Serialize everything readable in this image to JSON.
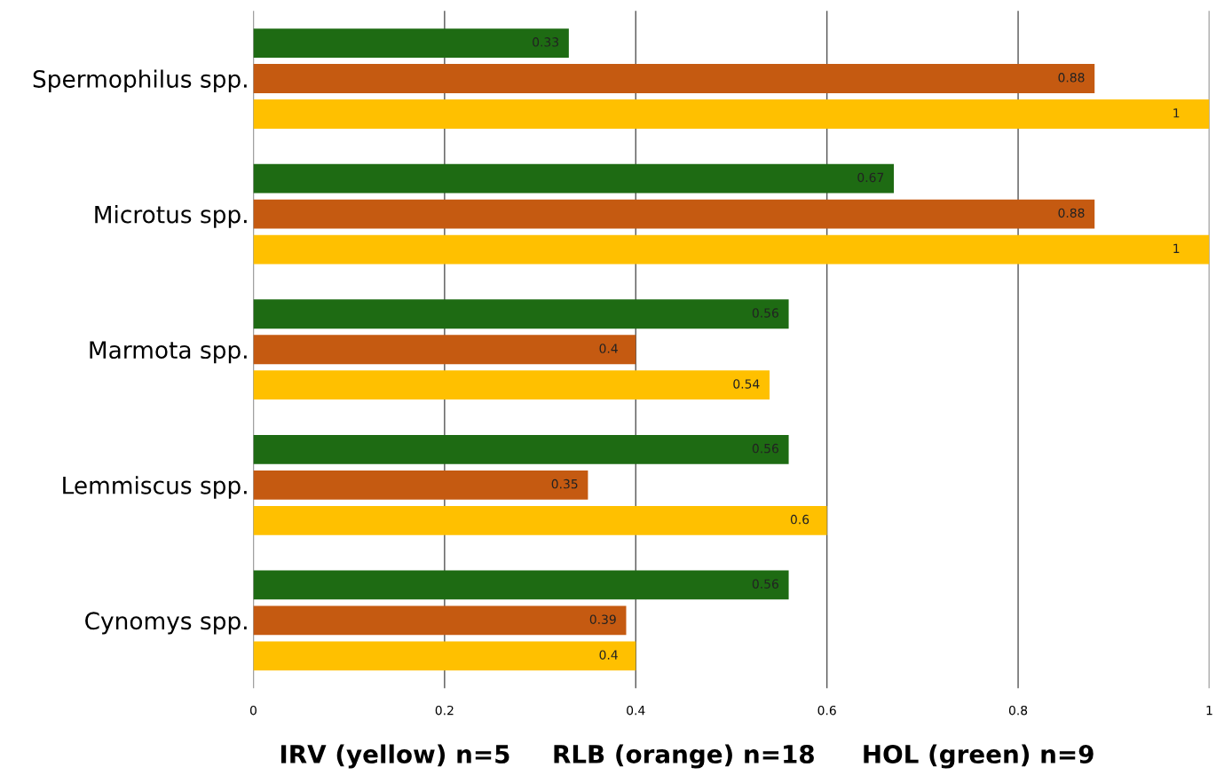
{
  "chart_data": {
    "type": "bar",
    "orientation": "horizontal",
    "categories": [
      "Spermophilus spp.",
      "Microtus spp.",
      "Marmota spp.",
      "Lemmiscus spp.",
      "Cynomys spp."
    ],
    "series": [
      {
        "color": "#1e6b13",
        "values": [
          0.33,
          0.67,
          0.56,
          0.56,
          0.56
        ]
      },
      {
        "color": "#c55a11",
        "values": [
          0.88,
          0.88,
          0.4,
          0.35,
          0.39
        ]
      },
      {
        "color": "#ffc000",
        "values": [
          1,
          1,
          0.54,
          0.6,
          0.4
        ]
      }
    ],
    "xlim": [
      0,
      1
    ],
    "xticks": [
      0,
      0.2,
      0.4,
      0.6,
      0.8,
      1
    ],
    "grid": "x",
    "data_labels": true,
    "annotations": [
      "IRV (yellow) n=5",
      "RLB (orange) n=18",
      "HOL (green) n=9"
    ]
  }
}
